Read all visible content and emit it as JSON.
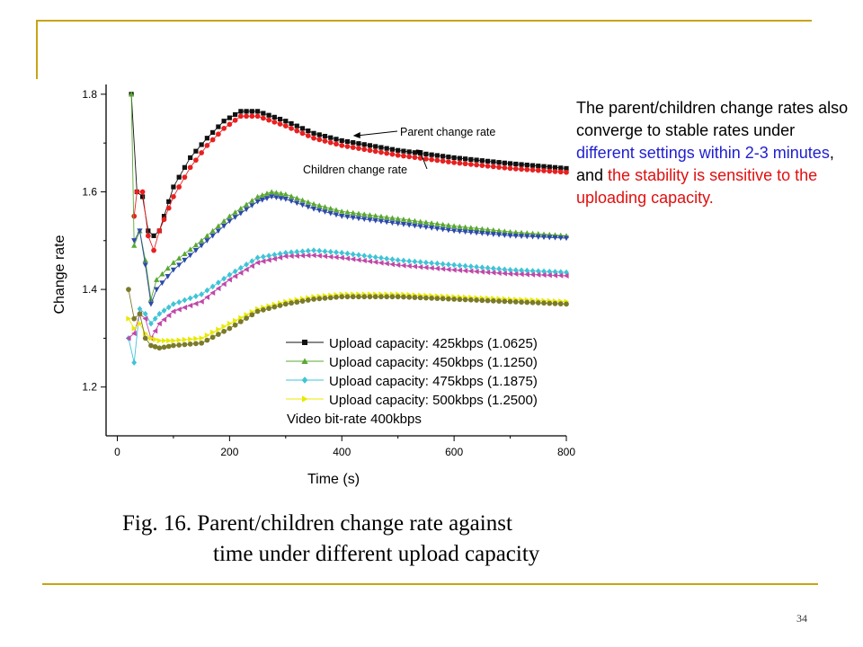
{
  "slide": {
    "side_text": {
      "part1": "The parent/children change rates also converge to stable rates under ",
      "part2": "different settings within 2-3 minutes",
      "part3": ", and ",
      "part4": "the stability is sensitive to the uploading capacity."
    },
    "caption_line1": "Fig. 16.  Parent/children change rate against",
    "caption_line2": "time under different upload capacity",
    "page_number": "34",
    "colors": {
      "accent_line": "#c8a415",
      "blue_text": "#1f1fd0",
      "red_text": "#e01010"
    }
  },
  "chart_data": {
    "type": "line",
    "xlabel": "Time (s)",
    "ylabel": "Change rate",
    "xlim": [
      -20,
      800
    ],
    "ylim": [
      1.1,
      1.82
    ],
    "x_ticks": [
      0,
      200,
      400,
      600,
      800
    ],
    "x_tick_labels": [
      "0",
      "200",
      "400",
      "600",
      "800"
    ],
    "y_ticks": [
      1.2,
      1.4,
      1.6,
      1.8
    ],
    "y_tick_labels": [
      "1.2",
      "1.4",
      "1.6",
      "1.8"
    ],
    "grid": false,
    "legend_position": "bottom-right",
    "legend": [
      {
        "label": "Upload capacity: 425kbps (1.0625)",
        "color": "#111111",
        "marker": "square"
      },
      {
        "label": "Upload capacity: 450kbps (1.1250)",
        "color": "#5aa832",
        "marker": "triangle-up"
      },
      {
        "label": "Upload capacity: 475kbps (1.1875)",
        "color": "#3fc4d6",
        "marker": "diamond"
      },
      {
        "label": "Upload capacity: 500kbps (1.2500)",
        "color": "#e8e800",
        "marker": "triangle-right"
      }
    ],
    "legend_note": "Video bit-rate 400kbps",
    "annotations": [
      {
        "text": "Parent change rate",
        "points_to": [
          420,
          1.715
        ]
      },
      {
        "text": "Children change rate",
        "points_to": [
          545,
          1.685
        ]
      }
    ],
    "series": [
      {
        "name": "Upload capacity: 425kbps (1.0625)",
        "color": "#111111",
        "marker": "square",
        "x": [
          25,
          35,
          45,
          55,
          65,
          75,
          100,
          130,
          160,
          190,
          220,
          250,
          300,
          350,
          400,
          450,
          500,
          600,
          700,
          800
        ],
        "y": [
          1.8,
          1.6,
          1.59,
          1.52,
          1.51,
          1.52,
          1.61,
          1.67,
          1.71,
          1.745,
          1.765,
          1.765,
          1.745,
          1.72,
          1.705,
          1.695,
          1.685,
          1.67,
          1.658,
          1.648
        ]
      },
      {
        "name": "Children change rate (425kbps)",
        "color": "#e82020",
        "marker": "circle",
        "x": [
          30,
          35,
          45,
          55,
          65,
          75,
          100,
          130,
          160,
          190,
          220,
          250,
          300,
          350,
          400,
          450,
          500,
          600,
          700,
          800
        ],
        "y": [
          1.55,
          1.6,
          1.6,
          1.51,
          1.48,
          1.52,
          1.59,
          1.65,
          1.695,
          1.73,
          1.755,
          1.755,
          1.735,
          1.71,
          1.695,
          1.685,
          1.675,
          1.66,
          1.648,
          1.64
        ]
      },
      {
        "name": "Upload capacity: 450kbps (1.1250)",
        "color": "#5aa832",
        "marker": "triangle-up",
        "x": [
          25,
          30,
          40,
          50,
          60,
          70,
          100,
          150,
          200,
          250,
          275,
          300,
          350,
          400,
          500,
          600,
          700,
          800
        ],
        "y": [
          1.8,
          1.49,
          1.52,
          1.46,
          1.38,
          1.42,
          1.455,
          1.5,
          1.55,
          1.59,
          1.6,
          1.595,
          1.575,
          1.56,
          1.545,
          1.53,
          1.518,
          1.51
        ]
      },
      {
        "name": "Children change rate (450kbps)",
        "color": "#2c4aa8",
        "marker": "triangle-down",
        "x": [
          30,
          40,
          50,
          60,
          70,
          100,
          150,
          200,
          250,
          275,
          300,
          350,
          400,
          500,
          600,
          700,
          800
        ],
        "y": [
          1.5,
          1.52,
          1.45,
          1.37,
          1.4,
          1.44,
          1.49,
          1.54,
          1.58,
          1.59,
          1.585,
          1.565,
          1.55,
          1.535,
          1.52,
          1.51,
          1.505
        ]
      },
      {
        "name": "Upload capacity: 475kbps (1.1875)",
        "color": "#3fc4d6",
        "marker": "diamond",
        "x": [
          20,
          30,
          40,
          50,
          60,
          75,
          100,
          150,
          200,
          250,
          300,
          350,
          400,
          500,
          600,
          700,
          800
        ],
        "y": [
          1.3,
          1.25,
          1.36,
          1.35,
          1.33,
          1.35,
          1.37,
          1.39,
          1.43,
          1.465,
          1.475,
          1.48,
          1.475,
          1.46,
          1.45,
          1.44,
          1.435
        ]
      },
      {
        "name": "Children change rate (475kbps)",
        "color": "#c048a8",
        "marker": "triangle-left",
        "x": [
          20,
          30,
          40,
          50,
          60,
          75,
          100,
          150,
          200,
          250,
          300,
          350,
          400,
          500,
          600,
          700,
          800
        ],
        "y": [
          1.3,
          1.31,
          1.35,
          1.34,
          1.3,
          1.33,
          1.355,
          1.375,
          1.42,
          1.455,
          1.468,
          1.47,
          1.465,
          1.45,
          1.44,
          1.432,
          1.428
        ]
      },
      {
        "name": "Upload capacity: 500kbps (1.2500)",
        "color": "#e8e800",
        "marker": "triangle-right",
        "x": [
          20,
          30,
          40,
          50,
          60,
          75,
          100,
          150,
          200,
          250,
          300,
          350,
          400,
          450,
          500,
          600,
          700,
          800
        ],
        "y": [
          1.34,
          1.32,
          1.33,
          1.31,
          1.3,
          1.295,
          1.295,
          1.3,
          1.33,
          1.36,
          1.375,
          1.385,
          1.39,
          1.39,
          1.39,
          1.385,
          1.38,
          1.375
        ]
      },
      {
        "name": "Children change rate (500kbps)",
        "color": "#7a7a2a",
        "marker": "circle",
        "x": [
          20,
          30,
          40,
          50,
          60,
          75,
          100,
          150,
          200,
          250,
          300,
          350,
          400,
          450,
          500,
          600,
          700,
          800
        ],
        "y": [
          1.4,
          1.34,
          1.35,
          1.3,
          1.285,
          1.28,
          1.285,
          1.29,
          1.32,
          1.355,
          1.37,
          1.38,
          1.385,
          1.385,
          1.385,
          1.38,
          1.375,
          1.37
        ]
      }
    ]
  }
}
